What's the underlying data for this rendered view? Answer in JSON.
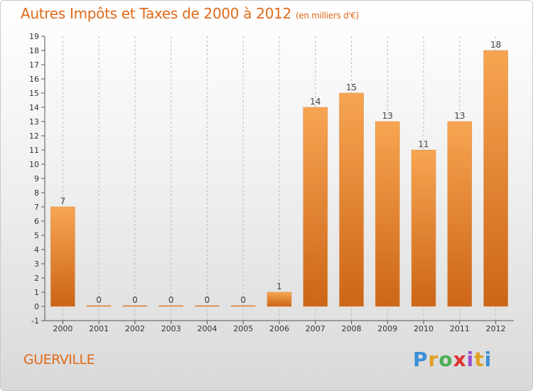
{
  "title": "Autres Impôts et Taxes de 2000 à 2012",
  "title_unit": "(en milliers d'€)",
  "commune": "GUERVILLE",
  "logo": {
    "text": "Proxiti",
    "letter_colors": [
      "#3a8fd6",
      "#e0a020",
      "#4caf50",
      "#e03030",
      "#9b4fd1",
      "#e0a020",
      "#3a8fd6"
    ]
  },
  "colors": {
    "title": "#e06a1a",
    "bar_top": "#f7a552",
    "bar_bottom": "#cc6518",
    "grid": "#bbbbbb"
  },
  "chart_data": {
    "type": "bar",
    "title": "Autres Impôts et Taxes de 2000 à 2012",
    "xlabel": "",
    "ylabel": "",
    "categories": [
      "2000",
      "2001",
      "2002",
      "2003",
      "2004",
      "2005",
      "2006",
      "2007",
      "2008",
      "2009",
      "2010",
      "2011",
      "2012"
    ],
    "values": [
      7,
      0,
      0,
      0,
      0,
      0,
      1,
      14,
      15,
      13,
      11,
      13,
      18
    ],
    "ylim": [
      -1,
      19
    ],
    "yticks": [
      -1,
      0,
      1,
      2,
      3,
      4,
      5,
      6,
      7,
      8,
      9,
      10,
      11,
      12,
      13,
      14,
      15,
      16,
      17,
      18,
      19
    ],
    "grid": "vertical dashed",
    "legend": "none"
  }
}
